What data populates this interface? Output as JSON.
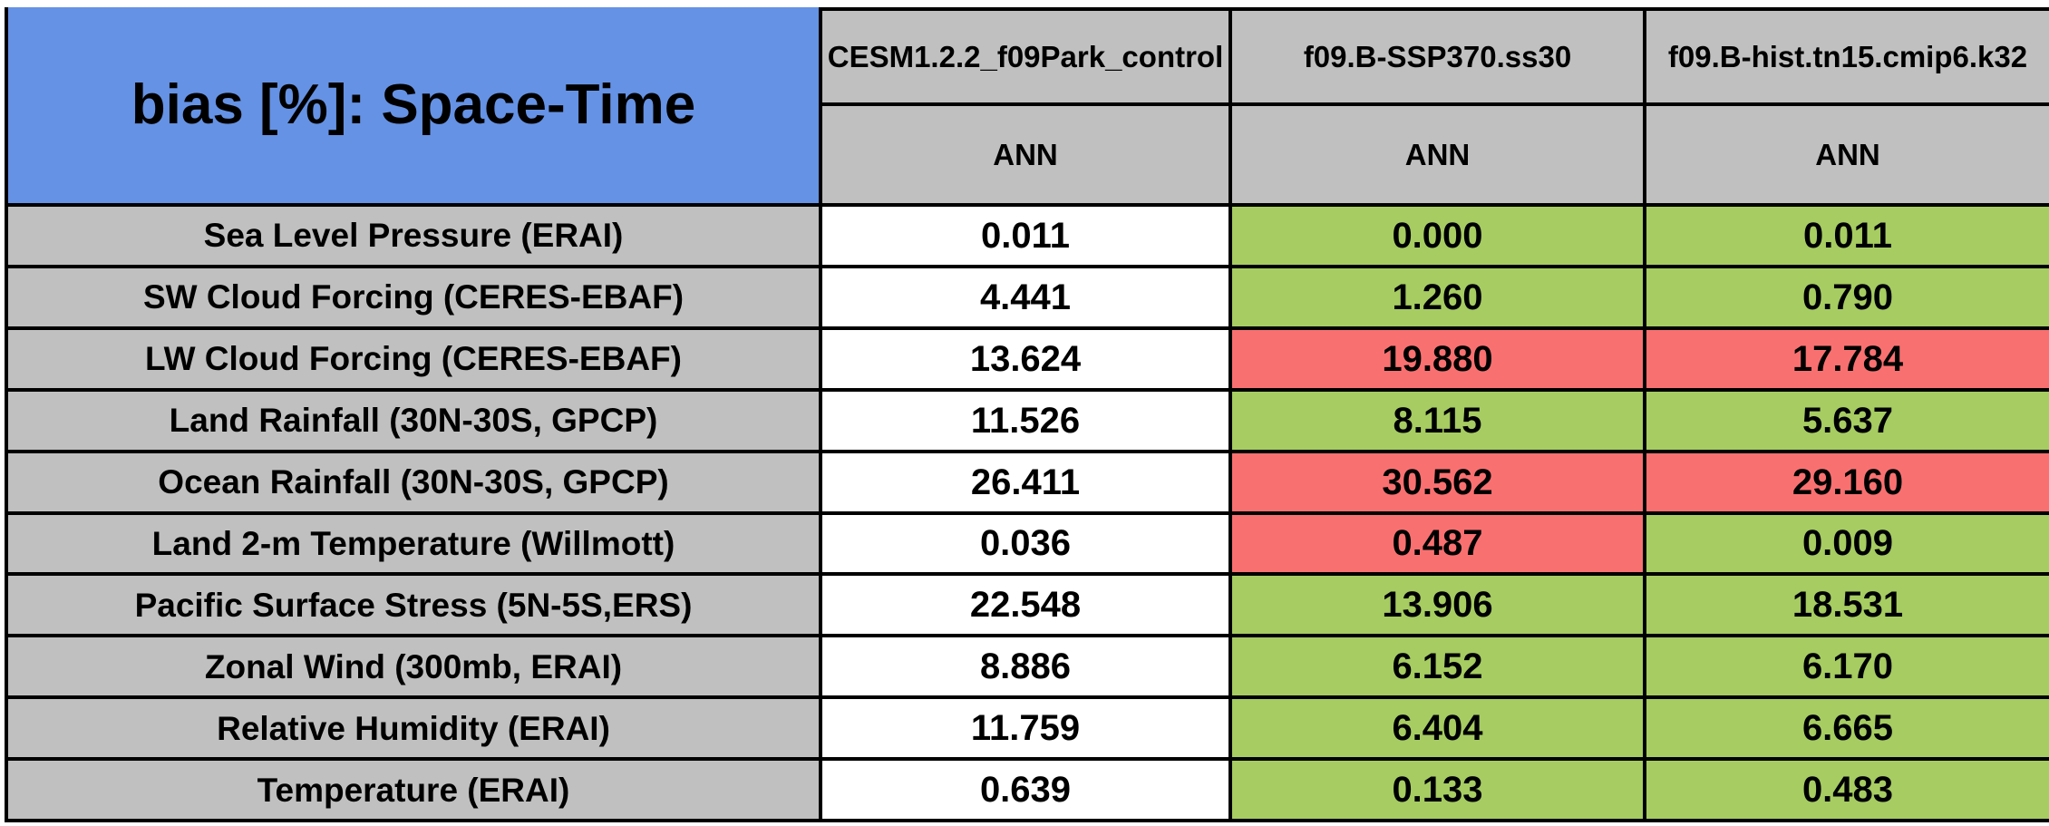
{
  "table": {
    "title": "bias [%]: Space-Time",
    "columns": [
      {
        "label": "CESM1.2.2_f09Park_control",
        "sub": "ANN"
      },
      {
        "label": "f09.B-SSP370.ss30",
        "sub": "ANN"
      },
      {
        "label": "f09.B-hist.tn15.cmip6.k32",
        "sub": "ANN"
      }
    ],
    "rows": [
      {
        "label": "Sea Level Pressure (ERAI)",
        "values": [
          "0.011",
          "0.000",
          "0.011"
        ],
        "tones": [
          "neutral",
          "good",
          "good"
        ]
      },
      {
        "label": "SW Cloud Forcing (CERES-EBAF)",
        "values": [
          "4.441",
          "1.260",
          "0.790"
        ],
        "tones": [
          "neutral",
          "good",
          "good"
        ]
      },
      {
        "label": "LW Cloud Forcing (CERES-EBAF)",
        "values": [
          "13.624",
          "19.880",
          "17.784"
        ],
        "tones": [
          "neutral",
          "bad",
          "bad"
        ]
      },
      {
        "label": "Land Rainfall (30N-30S, GPCP)",
        "values": [
          "11.526",
          "8.115",
          "5.637"
        ],
        "tones": [
          "neutral",
          "good",
          "good"
        ]
      },
      {
        "label": "Ocean Rainfall (30N-30S, GPCP)",
        "values": [
          "26.411",
          "30.562",
          "29.160"
        ],
        "tones": [
          "neutral",
          "bad",
          "bad"
        ]
      },
      {
        "label": "Land 2-m Temperature (Willmott)",
        "values": [
          "0.036",
          "0.487",
          "0.009"
        ],
        "tones": [
          "neutral",
          "bad",
          "good"
        ]
      },
      {
        "label": "Pacific Surface Stress (5N-5S,ERS)",
        "values": [
          "22.548",
          "13.906",
          "18.531"
        ],
        "tones": [
          "neutral",
          "good",
          "good"
        ]
      },
      {
        "label": "Zonal Wind (300mb, ERAI)",
        "values": [
          "8.886",
          "6.152",
          "6.170"
        ],
        "tones": [
          "neutral",
          "good",
          "good"
        ]
      },
      {
        "label": "Relative Humidity (ERAI)",
        "values": [
          "11.759",
          "6.404",
          "6.665"
        ],
        "tones": [
          "neutral",
          "good",
          "good"
        ]
      },
      {
        "label": "Temperature (ERAI)",
        "values": [
          "0.639",
          "0.133",
          "0.483"
        ],
        "tones": [
          "neutral",
          "good",
          "good"
        ]
      }
    ]
  },
  "colors": {
    "title_blue": "#6592E4",
    "header_gray": "#C0C0C0",
    "good_green": "#A6CC62",
    "bad_red": "#F97070",
    "neutral_white": "#FFFFFF",
    "border_black": "#000000"
  },
  "chart_data": {
    "type": "table",
    "title": "bias [%]: Space-Time",
    "columns": [
      "CESM1.2.2_f09Park_control ANN",
      "f09.B-SSP370.ss30 ANN",
      "f09.B-hist.tn15.cmip6.k32 ANN"
    ],
    "rows": [
      {
        "variable": "Sea Level Pressure (ERAI)",
        "values": [
          0.011,
          0.0,
          0.011
        ],
        "cell_status": [
          "neutral",
          "better",
          "better"
        ]
      },
      {
        "variable": "SW Cloud Forcing (CERES-EBAF)",
        "values": [
          4.441,
          1.26,
          0.79
        ],
        "cell_status": [
          "neutral",
          "better",
          "better"
        ]
      },
      {
        "variable": "LW Cloud Forcing (CERES-EBAF)",
        "values": [
          13.624,
          19.88,
          17.784
        ],
        "cell_status": [
          "neutral",
          "worse",
          "worse"
        ]
      },
      {
        "variable": "Land Rainfall (30N-30S, GPCP)",
        "values": [
          11.526,
          8.115,
          5.637
        ],
        "cell_status": [
          "neutral",
          "better",
          "better"
        ]
      },
      {
        "variable": "Ocean Rainfall (30N-30S, GPCP)",
        "values": [
          26.411,
          30.562,
          29.16
        ],
        "cell_status": [
          "neutral",
          "worse",
          "worse"
        ]
      },
      {
        "variable": "Land 2-m Temperature (Willmott)",
        "values": [
          0.036,
          0.487,
          0.009
        ],
        "cell_status": [
          "neutral",
          "worse",
          "better"
        ]
      },
      {
        "variable": "Pacific Surface Stress (5N-5S,ERS)",
        "values": [
          22.548,
          13.906,
          18.531
        ],
        "cell_status": [
          "neutral",
          "better",
          "better"
        ]
      },
      {
        "variable": "Zonal Wind (300mb, ERAI)",
        "values": [
          8.886,
          6.152,
          6.17
        ],
        "cell_status": [
          "neutral",
          "better",
          "better"
        ]
      },
      {
        "variable": "Relative Humidity (ERAI)",
        "values": [
          11.759,
          6.404,
          6.665
        ],
        "cell_status": [
          "neutral",
          "better",
          "better"
        ]
      },
      {
        "variable": "Temperature (ERAI)",
        "values": [
          0.639,
          0.133,
          0.483
        ],
        "cell_status": [
          "neutral",
          "better",
          "better"
        ]
      }
    ]
  }
}
